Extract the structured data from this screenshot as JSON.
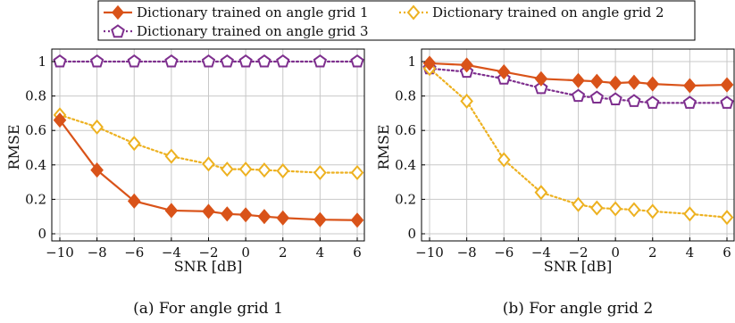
{
  "legend": {
    "entries": [
      {
        "label": "Dictionary trained on angle grid 1",
        "series": 0
      },
      {
        "label": "Dictionary trained on angle grid 2",
        "series": 1
      },
      {
        "label": "Dictionary trained on angle grid 3",
        "series": 2
      }
    ]
  },
  "colors": {
    "series0": "#d95319",
    "series1": "#edb120",
    "series2": "#7e2f8e",
    "grid": "#c8c8c8"
  },
  "markers": [
    "filled-diamond",
    "hollow-diamond",
    "hollow-pentagon"
  ],
  "captions": {
    "a": "(a) For angle grid 1",
    "b": "(b) For angle grid 2"
  },
  "chart_data": [
    {
      "type": "line",
      "xlabel": "SNR [dB]",
      "ylabel": "RMSE",
      "xlim": [
        -10,
        6
      ],
      "ylim": [
        0,
        1
      ],
      "xticks": [
        -10,
        -8,
        -6,
        -4,
        -2,
        0,
        2,
        4,
        6
      ],
      "yticks": [
        0,
        0.2,
        0.4,
        0.6,
        0.8,
        1
      ],
      "grid": true,
      "x": [
        -10,
        -8,
        -6,
        -4,
        -2,
        -1,
        0,
        1,
        2,
        4,
        6
      ],
      "series": [
        {
          "name": "Dictionary trained on angle grid 1",
          "line": "solid",
          "values": [
            0.66,
            0.37,
            0.19,
            0.135,
            0.13,
            0.115,
            0.11,
            0.1,
            0.092,
            0.082,
            0.079
          ]
        },
        {
          "name": "Dictionary trained on angle grid 2",
          "line": "dotted",
          "values": [
            0.69,
            0.62,
            0.525,
            0.45,
            0.405,
            0.375,
            0.375,
            0.37,
            0.365,
            0.355,
            0.355
          ]
        },
        {
          "name": "Dictionary trained on angle grid 3",
          "line": "dotted",
          "values": [
            1.0,
            1.0,
            1.0,
            1.0,
            1.0,
            1.0,
            1.0,
            1.0,
            1.0,
            1.0,
            1.0
          ]
        }
      ]
    },
    {
      "type": "line",
      "xlabel": "SNR [dB]",
      "ylabel": "RMSE",
      "xlim": [
        -10,
        6
      ],
      "ylim": [
        0,
        1
      ],
      "xticks": [
        -10,
        -8,
        -6,
        -4,
        -2,
        0,
        2,
        4,
        6
      ],
      "yticks": [
        0,
        0.2,
        0.4,
        0.6,
        0.8,
        1
      ],
      "grid": true,
      "x": [
        -10,
        -8,
        -6,
        -4,
        -2,
        -1,
        0,
        1,
        2,
        4,
        6
      ],
      "series": [
        {
          "name": "Dictionary trained on angle grid 1",
          "line": "solid",
          "values": [
            0.99,
            0.98,
            0.94,
            0.9,
            0.89,
            0.885,
            0.875,
            0.88,
            0.87,
            0.86,
            0.865
          ]
        },
        {
          "name": "Dictionary trained on angle grid 2",
          "line": "dotted",
          "values": [
            0.96,
            0.77,
            0.43,
            0.24,
            0.17,
            0.15,
            0.145,
            0.14,
            0.13,
            0.115,
            0.095
          ]
        },
        {
          "name": "Dictionary trained on angle grid 3",
          "line": "dotted",
          "values": [
            0.96,
            0.94,
            0.9,
            0.845,
            0.8,
            0.79,
            0.78,
            0.77,
            0.76,
            0.76,
            0.76
          ]
        }
      ]
    }
  ]
}
